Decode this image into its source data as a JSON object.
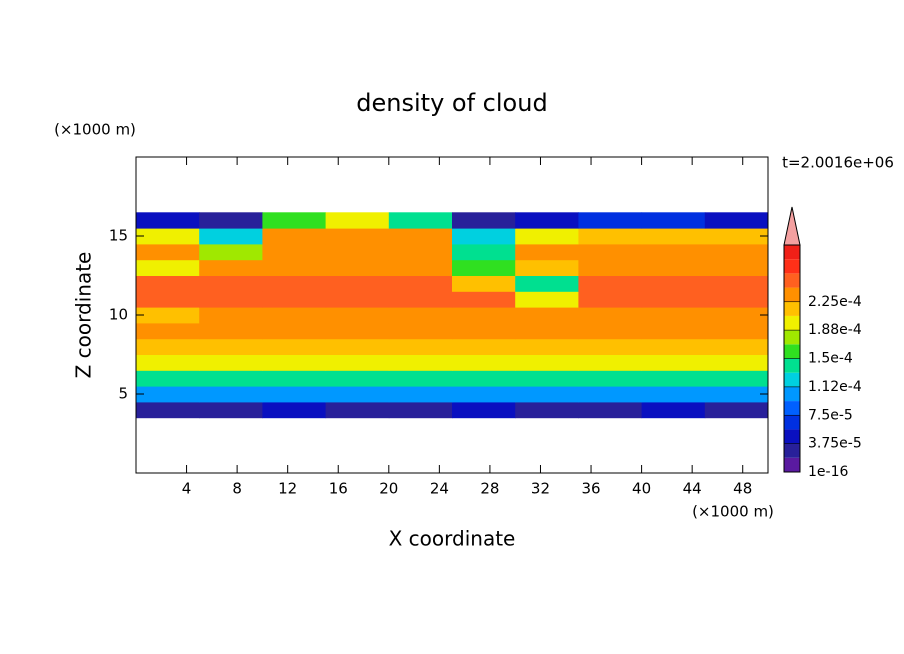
{
  "chart_data": {
    "type": "contour",
    "title": "density of cloud",
    "xlabel": "X coordinate",
    "ylabel": "Z coordinate",
    "x_unit": "(×1000 m)",
    "y_unit": "(×1000 m)",
    "time_label": "t=2.0016e+06",
    "xlim": [
      0,
      50
    ],
    "ylim": [
      0,
      20
    ],
    "xticks": [
      4,
      8,
      12,
      16,
      20,
      24,
      28,
      32,
      36,
      40,
      44,
      48
    ],
    "yticks": [
      5,
      10,
      15
    ],
    "x": [
      2.5,
      7.5,
      12.5,
      17.5,
      22.5,
      27.5,
      32.5,
      37.5,
      42.5,
      47.5
    ],
    "z": [
      4,
      5,
      6,
      7,
      8,
      9,
      10,
      11,
      12,
      13,
      14,
      15,
      16
    ],
    "values": [
      [
        3e-05,
        3e-05,
        4e-05,
        3e-05,
        3e-05,
        4e-05,
        3e-05,
        3e-05,
        4e-05,
        3e-05
      ],
      [
        0.0001,
        0.0001,
        0.0001,
        0.0001,
        0.0001,
        0.0001,
        0.0001,
        0.0001,
        0.0001,
        0.0001
      ],
      [
        0.00015,
        0.00015,
        0.00015,
        0.00015,
        0.00015,
        0.00015,
        0.00015,
        0.00015,
        0.00015,
        0.00015
      ],
      [
        0.00019,
        0.00019,
        0.00019,
        0.00019,
        0.00019,
        0.00019,
        0.00019,
        0.00019,
        0.00019,
        0.00019
      ],
      [
        0.00021,
        0.00021,
        0.00021,
        0.00021,
        0.00021,
        0.00021,
        0.00021,
        0.00021,
        0.00021,
        0.00021
      ],
      [
        0.00023,
        0.00023,
        0.00023,
        0.00023,
        0.00023,
        0.00023,
        0.00023,
        0.00023,
        0.00023,
        0.00023
      ],
      [
        0.00022,
        0.00024,
        0.00024,
        0.00024,
        0.00024,
        0.00024,
        0.00024,
        0.00024,
        0.00024,
        0.00024
      ],
      [
        0.000245,
        0.000245,
        0.000245,
        0.000245,
        0.000245,
        0.000245,
        0.0002,
        0.000245,
        0.000245,
        0.000245
      ],
      [
        0.000245,
        0.000245,
        0.000245,
        0.000245,
        0.000245,
        0.00022,
        0.00014,
        0.000245,
        0.000245,
        0.000245
      ],
      [
        0.0002,
        0.00024,
        0.00024,
        0.00024,
        0.00024,
        0.00016,
        0.00022,
        0.00024,
        0.00024,
        0.00024
      ],
      [
        0.000235,
        0.00018,
        0.000235,
        0.000235,
        0.000235,
        0.00015,
        0.000235,
        0.000235,
        0.000235,
        0.000235
      ],
      [
        0.0002,
        0.00013,
        0.00023,
        0.000235,
        0.00023,
        0.00012,
        0.0002,
        0.00022,
        0.00022,
        0.00021
      ],
      [
        4e-05,
        2e-05,
        0.00016,
        0.0002,
        0.00015,
        3e-05,
        5e-05,
        6e-05,
        6e-05,
        5e-05
      ]
    ],
    "colors": [
      "#5a1aa0",
      "#28209a",
      "#0a10c0",
      "#0030e0",
      "#0060ff",
      "#0098ff",
      "#00d0e0",
      "#00e090",
      "#30e020",
      "#a0e800",
      "#f0f000",
      "#ffc000",
      "#ff9000",
      "#ff6020",
      "#ff3018",
      "#f02018"
    ],
    "extend_color": "#f4a0a0",
    "clim": [
      1e-16,
      0.0003
    ],
    "cticks": [
      {
        "value": 1e-16,
        "label": "1e-16"
      },
      {
        "value": 3.75e-05,
        "label": "3.75e-5"
      },
      {
        "value": 7.5e-05,
        "label": "7.5e-5"
      },
      {
        "value": 0.0001125,
        "label": "1.12e-4"
      },
      {
        "value": 0.00015,
        "label": "1.5e-4"
      },
      {
        "value": 0.0001875,
        "label": "1.88e-4"
      },
      {
        "value": 0.000225,
        "label": "2.25e-4"
      }
    ]
  }
}
